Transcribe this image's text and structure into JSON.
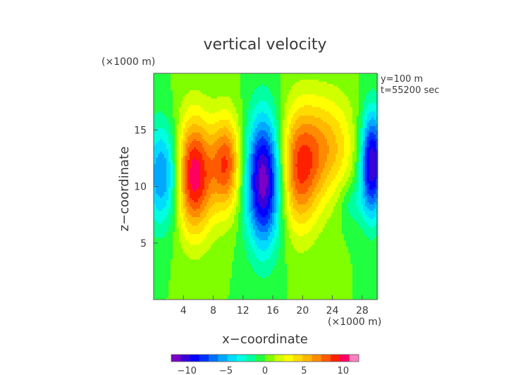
{
  "chart_data": {
    "type": "heatmap",
    "title": "vertical velocity",
    "xlabel": "x−coordinate",
    "ylabel": "z−coordinate",
    "x_unit": "(×1000 m)",
    "y_unit": "(×1000 m)",
    "annotations": [
      "y=100 m",
      "t=55200 sec"
    ],
    "xlim": [
      0,
      30
    ],
    "ylim": [
      0,
      20
    ],
    "x_ticks": [
      4,
      8,
      12,
      16,
      20,
      24,
      28
    ],
    "y_ticks": [
      5,
      10,
      15
    ],
    "x_tick_labels": [
      "4",
      "8",
      "12",
      "16",
      "20",
      "24",
      "28"
    ],
    "y_tick_labels": [
      "5",
      "10",
      "15"
    ],
    "colorbar": {
      "range": [
        -12,
        12
      ],
      "ticks": [
        -10,
        -5,
        0,
        5,
        10
      ],
      "tick_labels": [
        "−10",
        "−5",
        "0",
        "5",
        "10"
      ],
      "colors": [
        "#7a00c8",
        "#3a00d8",
        "#0000ff",
        "#0030ff",
        "#0070ff",
        "#00a8ff",
        "#00dcff",
        "#00ffe0",
        "#00ffa0",
        "#20ff40",
        "#80ff00",
        "#d0ff00",
        "#ffff00",
        "#ffdc00",
        "#ffb800",
        "#ff8c00",
        "#ff5a00",
        "#ff2000",
        "#ff0060",
        "#ff80c0"
      ]
    },
    "features": [
      {
        "x": 1.5,
        "z": 11.0,
        "amplitude": -7,
        "sx": 1.8,
        "sz": 3.2
      },
      {
        "x": 5.3,
        "z": 11.0,
        "amplitude": 11,
        "sx": 1.9,
        "sz": 3.6
      },
      {
        "x": 9.8,
        "z": 12.0,
        "amplitude": 8,
        "sx": 1.4,
        "sz": 3.0
      },
      {
        "x": 14.8,
        "z": 10.5,
        "amplitude": -12,
        "sx": 1.7,
        "sz": 4.0
      },
      {
        "x": 19.5,
        "z": 11.5,
        "amplitude": 8,
        "sx": 2.0,
        "sz": 3.8
      },
      {
        "x": 23.5,
        "z": 13.5,
        "amplitude": 5,
        "sx": 2.5,
        "sz": 3.2
      },
      {
        "x": 29.3,
        "z": 12.0,
        "amplitude": -11,
        "sx": 1.1,
        "sz": 3.2
      },
      {
        "x": 26.6,
        "z": 8.5,
        "amplitude": -2,
        "sx": 1.2,
        "sz": 1.5
      }
    ]
  }
}
